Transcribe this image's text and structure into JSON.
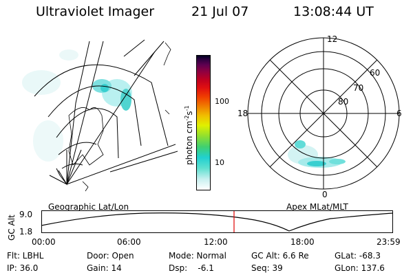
{
  "header": {
    "title": "Ultraviolet Imager",
    "date": "21 Jul 07",
    "time": "13:08:44 UT"
  },
  "colorbar": {
    "unit_label": "photon cm",
    "unit_sup1": "-2",
    "unit_s": "s",
    "unit_sup2": "-1",
    "tick_100": "100",
    "tick_10": "10",
    "colors": [
      "#ffffff",
      "#c8f0f0",
      "#60e0d0",
      "#20d0d0",
      "#40d070",
      "#90e030",
      "#e0f000",
      "#f0c000",
      "#f08000",
      "#f04000",
      "#e01010",
      "#c00020",
      "#900040",
      "#600050",
      "#300040",
      "#000020"
    ]
  },
  "polar_plot": {
    "mlt_labels": {
      "top": "12",
      "left": "18",
      "right": "6",
      "bottom": "0"
    },
    "lat_labels": [
      "60",
      "70",
      "80"
    ]
  },
  "map_labels": {
    "left": "Geographic Lat/Lon",
    "right": "Apex MLat/MLT"
  },
  "altitude_plot": {
    "axis_label": "GC Alt",
    "y_top": "9.0",
    "y_bottom": "1.8",
    "x_ticks": [
      "00:00",
      "06:00",
      "12:00",
      "18:00",
      "23:59"
    ],
    "current_time_color": "#e00000"
  },
  "info": {
    "flt": "Flt: LBHL",
    "ip": "IP: 36.0",
    "door": "Door: Open",
    "gain": "Gain: 14",
    "mode": "Mode: Normal",
    "dsp": "Dsp:    -6.1",
    "gc_alt": "GC Alt: 6.6 Re",
    "seq": "Seq: 39",
    "glat": "GLat: -68.3",
    "glon": "GLon: 137.6"
  }
}
